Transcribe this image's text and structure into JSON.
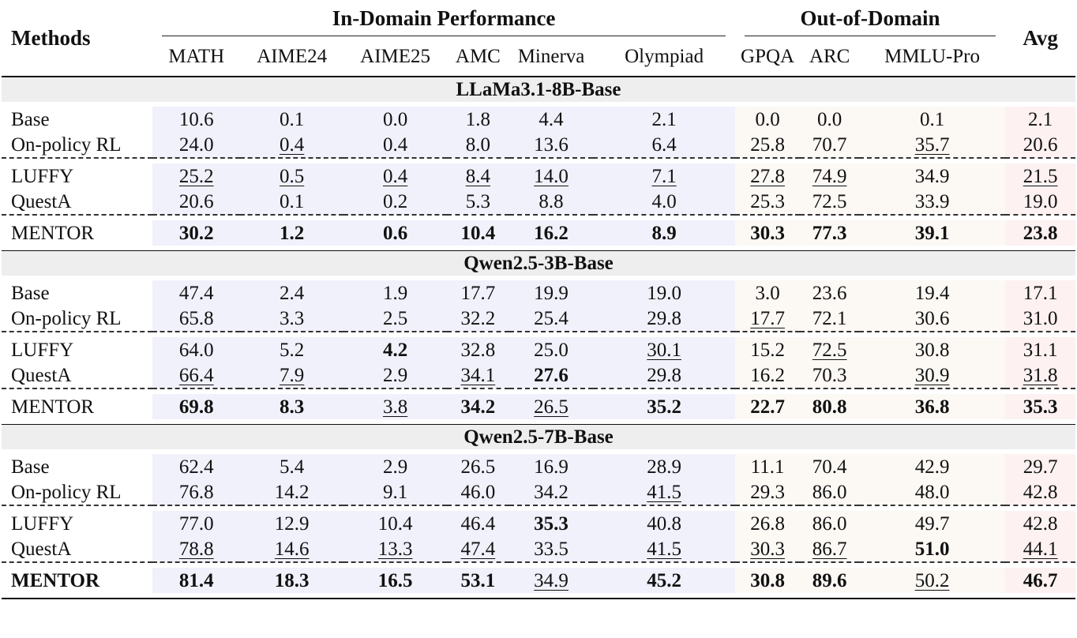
{
  "header": {
    "methods": "Methods",
    "in_domain": "In-Domain Performance",
    "out_domain": "Out-of-Domain",
    "avg": "Avg",
    "columns": [
      "MATH",
      "AIME24",
      "AIME25",
      "AMC",
      "Minerva",
      "Olympiad",
      "GPQA",
      "ARC",
      "MMLU-Pro"
    ]
  },
  "sections": [
    {
      "title": "LLaMa3.1-8B-Base",
      "groups": [
        [
          {
            "method": "Base",
            "bold_method": false,
            "values": [
              "10.6",
              "0.1",
              "0.0",
              "1.8",
              "4.4",
              "2.1",
              "0.0",
              "0.0",
              "0.1",
              "2.1"
            ],
            "bold": [],
            "underline": []
          },
          {
            "method": "On-policy RL",
            "bold_method": false,
            "values": [
              "24.0",
              "0.4",
              "0.4",
              "8.0",
              "13.6",
              "6.4",
              "25.8",
              "70.7",
              "35.7",
              "20.6"
            ],
            "bold": [],
            "underline": [
              1,
              8
            ]
          }
        ],
        [
          {
            "method": "LUFFY",
            "bold_method": false,
            "values": [
              "25.2",
              "0.5",
              "0.4",
              "8.4",
              "14.0",
              "7.1",
              "27.8",
              "74.9",
              "34.9",
              "21.5"
            ],
            "bold": [],
            "underline": [
              0,
              1,
              2,
              3,
              4,
              5,
              6,
              7,
              9
            ]
          },
          {
            "method": "QuestA",
            "bold_method": false,
            "values": [
              "20.6",
              "0.1",
              "0.2",
              "5.3",
              "8.8",
              "4.0",
              "25.3",
              "72.5",
              "33.9",
              "19.0"
            ],
            "bold": [],
            "underline": []
          }
        ],
        [
          {
            "method": "MENTOR",
            "bold_method": false,
            "values": [
              "30.2",
              "1.2",
              "0.6",
              "10.4",
              "16.2",
              "8.9",
              "30.3",
              "77.3",
              "39.1",
              "23.8"
            ],
            "bold": [
              0,
              1,
              2,
              3,
              4,
              5,
              6,
              7,
              8,
              9
            ],
            "underline": []
          }
        ]
      ]
    },
    {
      "title": "Qwen2.5-3B-Base",
      "groups": [
        [
          {
            "method": "Base",
            "bold_method": false,
            "values": [
              "47.4",
              "2.4",
              "1.9",
              "17.7",
              "19.9",
              "19.0",
              "3.0",
              "23.6",
              "19.4",
              "17.1"
            ],
            "bold": [],
            "underline": []
          },
          {
            "method": "On-policy RL",
            "bold_method": false,
            "values": [
              "65.8",
              "3.3",
              "2.5",
              "32.2",
              "25.4",
              "29.8",
              "17.7",
              "72.1",
              "30.6",
              "31.0"
            ],
            "bold": [],
            "underline": [
              6
            ]
          }
        ],
        [
          {
            "method": "LUFFY",
            "bold_method": false,
            "values": [
              "64.0",
              "5.2",
              "4.2",
              "32.8",
              "25.0",
              "30.1",
              "15.2",
              "72.5",
              "30.8",
              "31.1"
            ],
            "bold": [
              2
            ],
            "underline": [
              5,
              7
            ]
          },
          {
            "method": "QuestA",
            "bold_method": false,
            "values": [
              "66.4",
              "7.9",
              "2.9",
              "34.1",
              "27.6",
              "29.8",
              "16.2",
              "70.3",
              "30.9",
              "31.8"
            ],
            "bold": [
              4
            ],
            "underline": [
              0,
              1,
              3,
              8,
              9
            ]
          }
        ],
        [
          {
            "method": "MENTOR",
            "bold_method": false,
            "values": [
              "69.8",
              "8.3",
              "3.8",
              "34.2",
              "26.5",
              "35.2",
              "22.7",
              "80.8",
              "36.8",
              "35.3"
            ],
            "bold": [
              0,
              1,
              3,
              5,
              6,
              7,
              8,
              9
            ],
            "underline": [
              2,
              4
            ]
          }
        ]
      ]
    },
    {
      "title": "Qwen2.5-7B-Base",
      "groups": [
        [
          {
            "method": "Base",
            "bold_method": false,
            "values": [
              "62.4",
              "5.4",
              "2.9",
              "26.5",
              "16.9",
              "28.9",
              "11.1",
              "70.4",
              "42.9",
              "29.7"
            ],
            "bold": [],
            "underline": []
          },
          {
            "method": "On-policy RL",
            "bold_method": false,
            "values": [
              "76.8",
              "14.2",
              "9.1",
              "46.0",
              "34.2",
              "41.5",
              "29.3",
              "86.0",
              "48.0",
              "42.8"
            ],
            "bold": [],
            "underline": [
              5
            ]
          }
        ],
        [
          {
            "method": "LUFFY",
            "bold_method": false,
            "values": [
              "77.0",
              "12.9",
              "10.4",
              "46.4",
              "35.3",
              "40.8",
              "26.8",
              "86.0",
              "49.7",
              "42.8"
            ],
            "bold": [
              4
            ],
            "underline": []
          },
          {
            "method": "QuestA",
            "bold_method": false,
            "values": [
              "78.8",
              "14.6",
              "13.3",
              "47.4",
              "33.5",
              "41.5",
              "30.3",
              "86.7",
              "51.0",
              "44.1"
            ],
            "bold": [
              8
            ],
            "underline": [
              0,
              1,
              2,
              3,
              5,
              6,
              7,
              9
            ]
          }
        ],
        [
          {
            "method": "MENTOR",
            "bold_method": true,
            "values": [
              "81.4",
              "18.3",
              "16.5",
              "53.1",
              "34.9",
              "45.2",
              "30.8",
              "89.6",
              "50.2",
              "46.7"
            ],
            "bold": [
              0,
              1,
              2,
              3,
              5,
              6,
              7,
              9
            ],
            "underline": [
              4,
              8
            ]
          }
        ]
      ]
    }
  ]
}
